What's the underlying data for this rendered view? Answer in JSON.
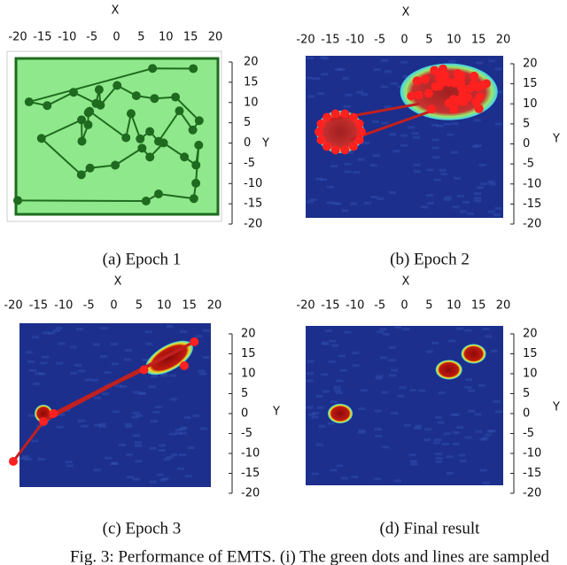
{
  "figure": {
    "panels": [
      {
        "caption": "(a) Epoch 1",
        "xlabel": "X",
        "ylabel": "Y",
        "xticks": [
          -20,
          -15,
          -10,
          -5,
          0,
          5,
          10,
          15,
          20
        ],
        "yticks": [
          20,
          15,
          10,
          5,
          0,
          -5,
          -10,
          -15,
          -20
        ]
      },
      {
        "caption": "(b) Epoch 2",
        "xlabel": "X",
        "ylabel": "Y",
        "xticks": [
          -20,
          -15,
          -10,
          -5,
          0,
          5,
          10,
          15,
          20
        ],
        "yticks": [
          20,
          15,
          10,
          5,
          0,
          -5,
          -10,
          -15,
          -20
        ]
      },
      {
        "caption": "(c) Epoch 3",
        "xlabel": "X",
        "ylabel": "Y",
        "xticks": [
          -20,
          -15,
          -10,
          -5,
          0,
          5,
          10,
          15,
          20
        ],
        "yticks": [
          20,
          15,
          10,
          5,
          0,
          -5,
          -10,
          -15,
          -20
        ]
      },
      {
        "caption": "(d) Final result",
        "xlabel": "X",
        "ylabel": "Y",
        "xticks": [
          -20,
          -15,
          -10,
          -5,
          0,
          5,
          10,
          15,
          20
        ],
        "yticks": [
          20,
          15,
          10,
          5,
          0,
          -5,
          -10,
          -15,
          -20
        ]
      }
    ],
    "caption": "Fig. 3: Performance of EMTS. (i) The green dots and lines are sampled"
  }
}
